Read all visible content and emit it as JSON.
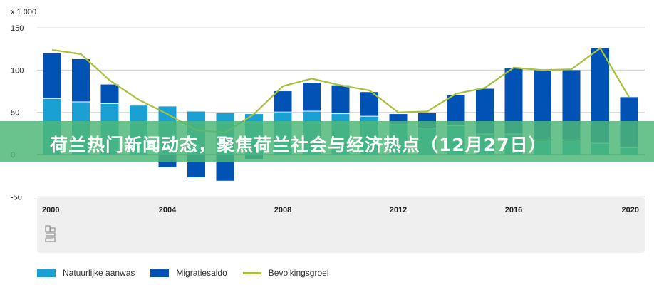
{
  "title_banner": "荷兰热门新闻动态，聚焦荷兰社会与经济热点（12月27日）",
  "chart_data": {
    "type": "bar",
    "stacked": true,
    "unit_label": "x 1 000",
    "categories": [
      2000,
      2001,
      2002,
      2003,
      2004,
      2005,
      2006,
      2007,
      2008,
      2009,
      2010,
      2011,
      2012,
      2013,
      2014,
      2015,
      2016,
      2017,
      2018,
      2019,
      2020
    ],
    "x_tick_labels": [
      "2000",
      "2004",
      "2008",
      "2012",
      "2016",
      "2020"
    ],
    "y_tick_labels": [
      "150",
      "100",
      "50",
      "0",
      "-50"
    ],
    "ylim": [
      -50,
      150
    ],
    "grid": true,
    "legend_placement": "bottom-left",
    "series": [
      {
        "name": "Natuurlijke aanwas",
        "type": "bar",
        "color": "#1ba0d3",
        "values": [
          66,
          62,
          60,
          58,
          57,
          51,
          49,
          48,
          50,
          51,
          48,
          45,
          35,
          31,
          34,
          24,
          24,
          17,
          17,
          13,
          8
        ]
      },
      {
        "name": "Migratiesaldo",
        "type": "bar",
        "color": "#0052b5",
        "values": [
          54,
          51,
          23,
          0,
          -15,
          -27,
          -31,
          -5,
          25,
          34,
          34,
          29,
          13,
          18,
          36,
          54,
          78,
          83,
          83,
          113,
          60
        ]
      },
      {
        "name": "Bevolkingsgroei",
        "type": "line",
        "color": "#a8c13c",
        "values": [
          124,
          119,
          88,
          65,
          48,
          29,
          26,
          48,
          81,
          90,
          82,
          76,
          50,
          51,
          72,
          79,
          103,
          100,
          101,
          126,
          68
        ]
      }
    ]
  },
  "logo": "cbs"
}
